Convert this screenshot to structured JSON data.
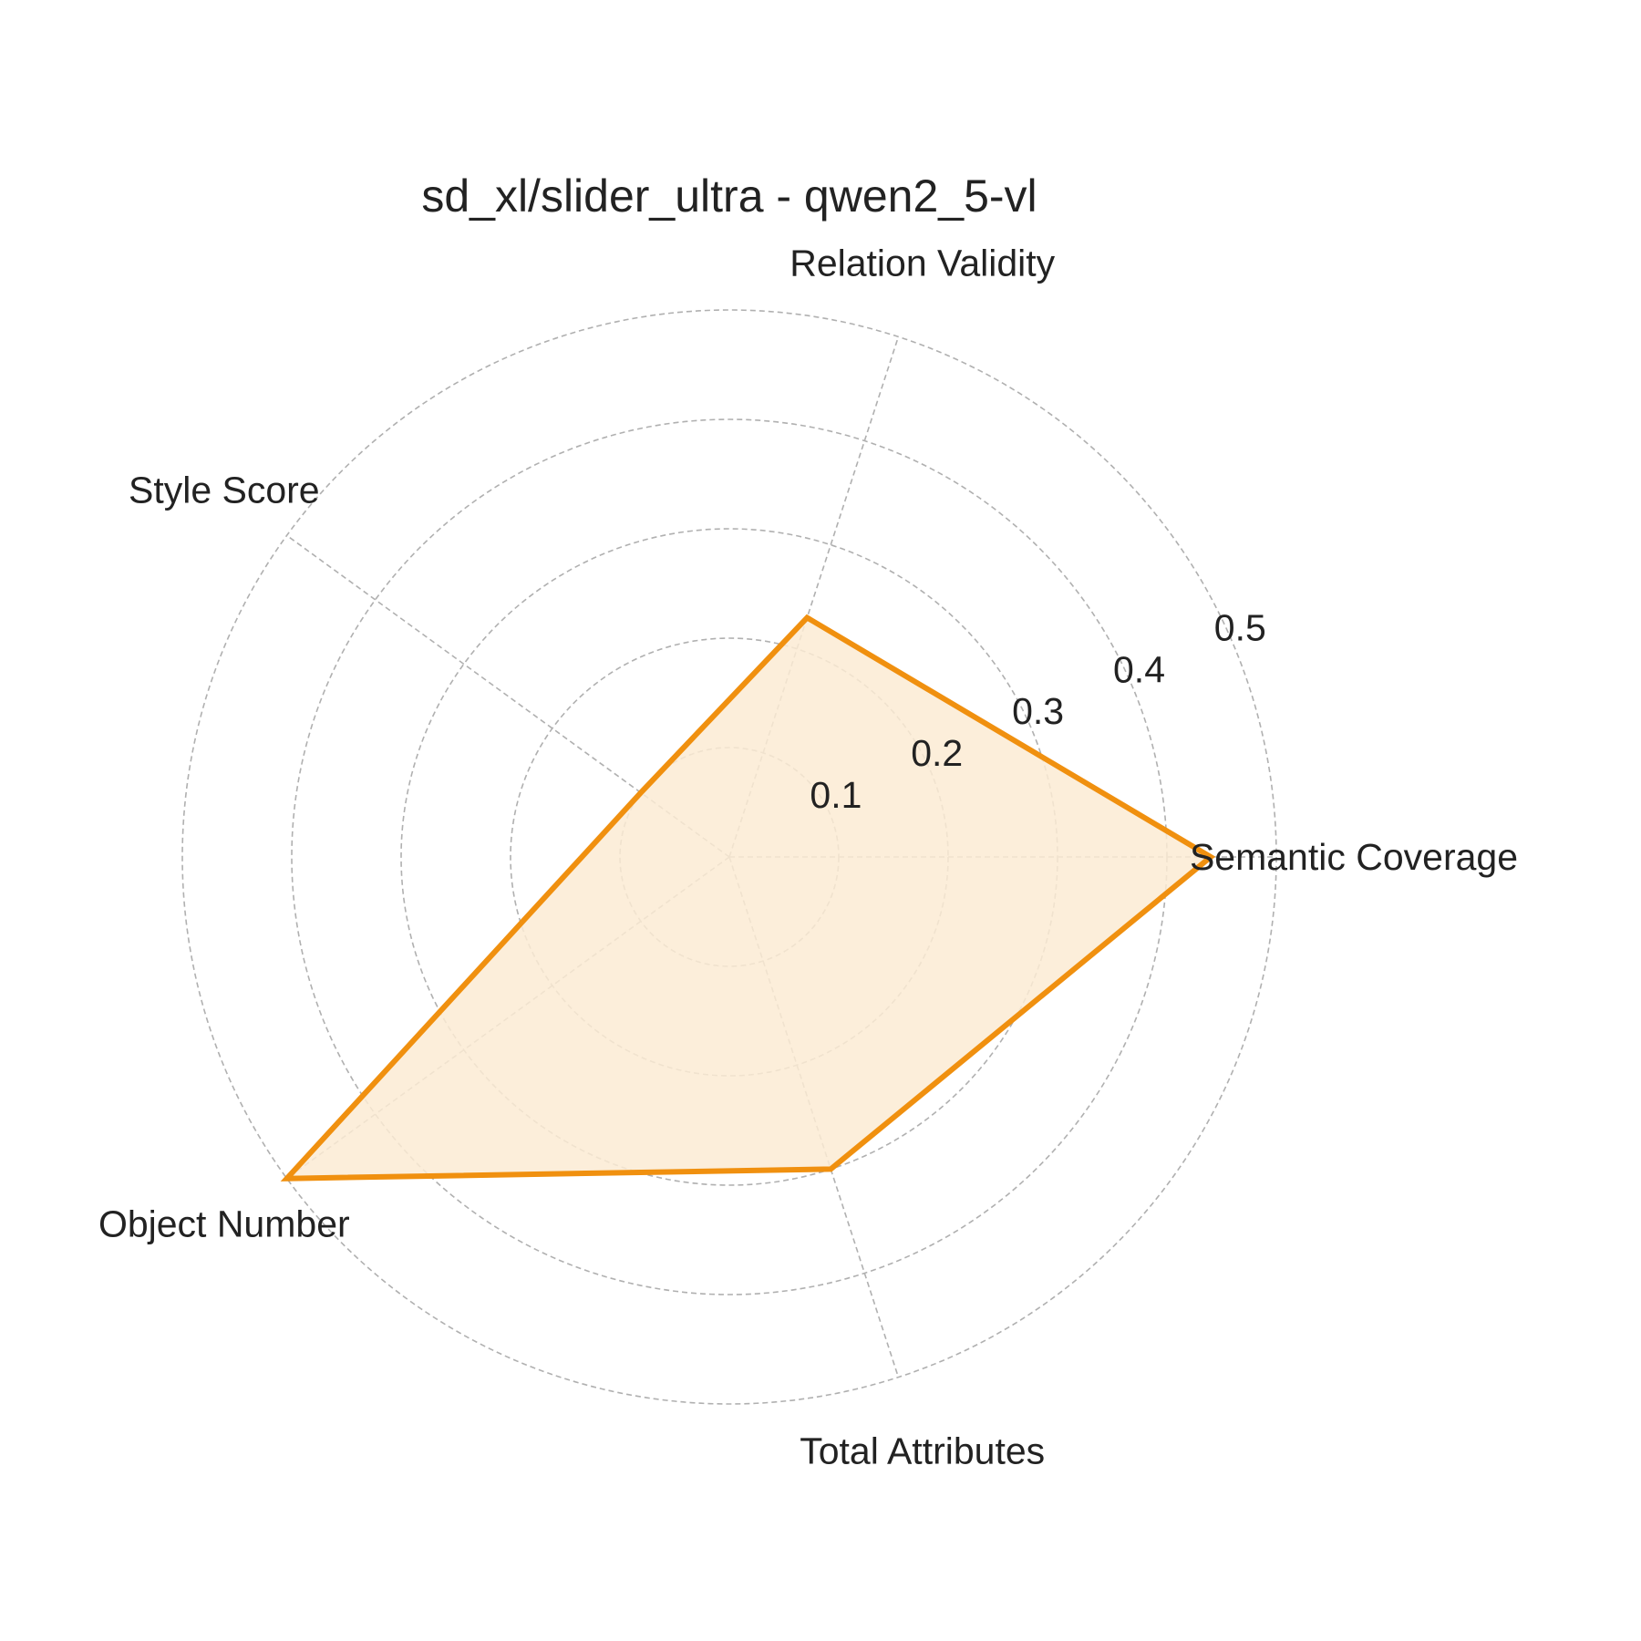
{
  "chart_data": {
    "type": "radar",
    "title": "sd_xl/slider_ultra - qwen2_5-vl",
    "axes": [
      "Semantic Coverage",
      "Relation Validity",
      "Style Score",
      "Object Number",
      "Total Attributes"
    ],
    "series": [
      {
        "values": [
          0.44,
          0.23,
          0.1,
          0.5,
          0.3
        ]
      }
    ],
    "rlim": [
      0,
      0.5
    ],
    "rticks": [
      0.1,
      0.2,
      0.3,
      0.4,
      0.5
    ],
    "rtick_labels": [
      "0.1",
      "0.2",
      "0.3",
      "0.4",
      "0.5"
    ],
    "grid": true,
    "colors": {
      "line": "#f0900f",
      "fill": "#fbebd3",
      "grid": "#b0b0b0",
      "text": "#222222"
    }
  }
}
